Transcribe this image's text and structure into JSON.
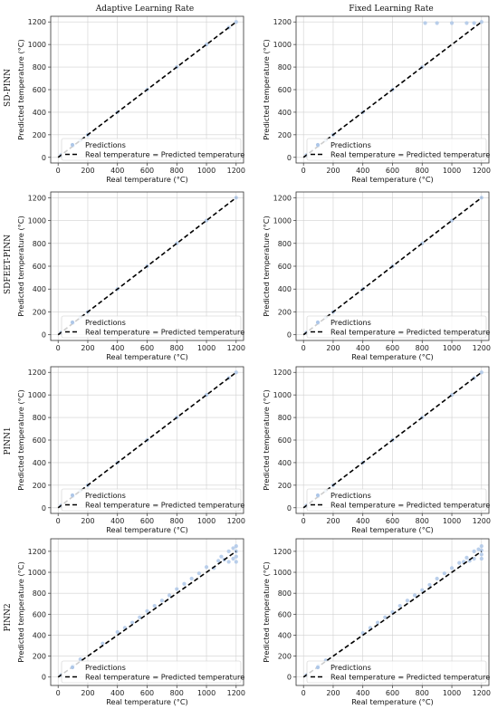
{
  "column_titles": [
    "Adaptive Learning Rate",
    "Fixed Learning Rate"
  ],
  "row_labels": [
    "SD-PINN",
    "SDFEET-PINN",
    "PINN1",
    "PINN2"
  ],
  "colors": {
    "predictions": "#aec7e8",
    "reference_line": "#000000",
    "grid": "#d0d0d0"
  },
  "chart_data": [
    {
      "type": "scatter",
      "title": "",
      "row": 0,
      "col": 0,
      "xlabel": "Real temperature (°C)",
      "ylabel": "Predicted temperature (°C)",
      "xlim": [
        -50,
        1250
      ],
      "ylim": [
        -50,
        1250
      ],
      "xticks": [
        0,
        200,
        400,
        600,
        800,
        1000,
        1200
      ],
      "yticks": [
        0,
        200,
        400,
        600,
        800,
        1000,
        1200
      ],
      "grid": true,
      "legend_position": "lower-right",
      "series": [
        {
          "name": "Predictions",
          "x": [
            20,
            100,
            150,
            200,
            400,
            600,
            800,
            1000,
            1150,
            1200
          ],
          "y": [
            20,
            100,
            150,
            200,
            400,
            600,
            800,
            1000,
            1150,
            1200
          ]
        },
        {
          "name": "Real temperature = Predicted temperature",
          "x": [
            0,
            1200
          ],
          "y": [
            0,
            1200
          ]
        }
      ]
    },
    {
      "type": "scatter",
      "title": "",
      "row": 0,
      "col": 1,
      "xlabel": "Real temperature (°C)",
      "ylabel": "Predicted temperature (°C)",
      "xlim": [
        -50,
        1250
      ],
      "ylim": [
        -50,
        1250
      ],
      "xticks": [
        0,
        200,
        400,
        600,
        800,
        1000,
        1200
      ],
      "yticks": [
        0,
        200,
        400,
        600,
        800,
        1000,
        1200
      ],
      "grid": true,
      "legend_position": "lower-right",
      "series": [
        {
          "name": "Predictions",
          "x": [
            20,
            100,
            150,
            200,
            400,
            600,
            800,
            820,
            900,
            1000,
            1100,
            1150,
            1200
          ],
          "y": [
            20,
            100,
            150,
            200,
            400,
            600,
            800,
            1190,
            1190,
            1190,
            1190,
            1190,
            1200
          ]
        },
        {
          "name": "Real temperature = Predicted temperature",
          "x": [
            0,
            1200
          ],
          "y": [
            0,
            1200
          ]
        }
      ]
    },
    {
      "type": "scatter",
      "title": "",
      "row": 1,
      "col": 0,
      "xlabel": "Real temperature (°C)",
      "ylabel": "Predicted temperature (°C)",
      "xlim": [
        -50,
        1250
      ],
      "ylim": [
        -50,
        1250
      ],
      "xticks": [
        0,
        200,
        400,
        600,
        800,
        1000,
        1200
      ],
      "yticks": [
        0,
        200,
        400,
        600,
        800,
        1000,
        1200
      ],
      "grid": true,
      "legend_position": "lower-right",
      "series": [
        {
          "name": "Predictions",
          "x": [
            20,
            100,
            150,
            200,
            400,
            600,
            800,
            1000,
            1200
          ],
          "y": [
            20,
            100,
            150,
            200,
            400,
            600,
            800,
            1000,
            1200
          ]
        },
        {
          "name": "Real temperature = Predicted temperature",
          "x": [
            0,
            1200
          ],
          "y": [
            0,
            1200
          ]
        }
      ]
    },
    {
      "type": "scatter",
      "title": "",
      "row": 1,
      "col": 1,
      "xlabel": "Real temperature (°C)",
      "ylabel": "Predicted temperature (°C)",
      "xlim": [
        -50,
        1250
      ],
      "ylim": [
        -50,
        1250
      ],
      "xticks": [
        0,
        200,
        400,
        600,
        800,
        1000,
        1200
      ],
      "yticks": [
        0,
        200,
        400,
        600,
        800,
        1000,
        1200
      ],
      "grid": true,
      "legend_position": "lower-right",
      "series": [
        {
          "name": "Predictions",
          "x": [
            20,
            100,
            150,
            200,
            400,
            600,
            800,
            1000,
            1200
          ],
          "y": [
            20,
            100,
            150,
            200,
            400,
            600,
            800,
            1000,
            1200
          ]
        },
        {
          "name": "Real temperature = Predicted temperature",
          "x": [
            0,
            1200
          ],
          "y": [
            0,
            1200
          ]
        }
      ]
    },
    {
      "type": "scatter",
      "title": "",
      "row": 2,
      "col": 0,
      "xlabel": "Real temperature (°C)",
      "ylabel": "Predicted temperature (°C)",
      "xlim": [
        -50,
        1250
      ],
      "ylim": [
        -50,
        1250
      ],
      "xticks": [
        0,
        200,
        400,
        600,
        800,
        1000,
        1200
      ],
      "yticks": [
        0,
        200,
        400,
        600,
        800,
        1000,
        1200
      ],
      "grid": true,
      "legend_position": "lower-right",
      "series": [
        {
          "name": "Predictions",
          "x": [
            20,
            100,
            150,
            200,
            400,
            600,
            800,
            1000,
            1150,
            1200
          ],
          "y": [
            20,
            100,
            150,
            200,
            400,
            600,
            800,
            1000,
            1150,
            1200
          ]
        },
        {
          "name": "Real temperature = Predicted temperature",
          "x": [
            0,
            1200
          ],
          "y": [
            0,
            1200
          ]
        }
      ]
    },
    {
      "type": "scatter",
      "title": "",
      "row": 2,
      "col": 1,
      "xlabel": "Real temperature (°C)",
      "ylabel": "Predicted temperature (°C)",
      "xlim": [
        -50,
        1250
      ],
      "ylim": [
        -50,
        1250
      ],
      "xticks": [
        0,
        200,
        400,
        600,
        800,
        1000,
        1200
      ],
      "yticks": [
        0,
        200,
        400,
        600,
        800,
        1000,
        1200
      ],
      "grid": true,
      "legend_position": "lower-right",
      "series": [
        {
          "name": "Predictions",
          "x": [
            20,
            100,
            150,
            200,
            400,
            600,
            800,
            1000,
            1150,
            1200
          ],
          "y": [
            20,
            100,
            150,
            200,
            400,
            600,
            800,
            1000,
            1150,
            1200
          ]
        },
        {
          "name": "Real temperature = Predicted temperature",
          "x": [
            0,
            1200
          ],
          "y": [
            0,
            1200
          ]
        }
      ]
    },
    {
      "type": "scatter",
      "title": "",
      "row": 3,
      "col": 0,
      "xlabel": "Real temperature (°C)",
      "ylabel": "Predicted temperature (°C)",
      "xlim": [
        -50,
        1250
      ],
      "ylim": [
        -80,
        1320
      ],
      "xticks": [
        0,
        200,
        400,
        600,
        800,
        1000,
        1200
      ],
      "yticks": [
        0,
        200,
        400,
        600,
        800,
        1000,
        1200
      ],
      "grid": true,
      "legend_position": "lower-right",
      "series": [
        {
          "name": "Predictions",
          "x": [
            20,
            100,
            150,
            300,
            400,
            450,
            500,
            550,
            600,
            650,
            700,
            750,
            800,
            850,
            900,
            950,
            1000,
            1050,
            1080,
            1100,
            1120,
            1150,
            1150,
            1180,
            1180,
            1200,
            1200,
            1200,
            1200
          ],
          "y": [
            20,
            110,
            170,
            320,
            430,
            470,
            520,
            570,
            630,
            680,
            730,
            780,
            840,
            890,
            940,
            990,
            1050,
            1040,
            1110,
            1150,
            1120,
            1100,
            1200,
            1130,
            1230,
            1100,
            1150,
            1200,
            1250
          ]
        },
        {
          "name": "Real temperature = Predicted temperature",
          "x": [
            0,
            1200
          ],
          "y": [
            0,
            1200
          ]
        }
      ]
    },
    {
      "type": "scatter",
      "title": "",
      "row": 3,
      "col": 1,
      "xlabel": "Real temperature (°C)",
      "ylabel": "Predicted temperature (°C)",
      "xlim": [
        -50,
        1250
      ],
      "ylim": [
        -80,
        1320
      ],
      "xticks": [
        0,
        200,
        400,
        600,
        800,
        1000,
        1200
      ],
      "yticks": [
        0,
        200,
        400,
        600,
        800,
        1000,
        1200
      ],
      "grid": true,
      "legend_position": "lower-right",
      "series": [
        {
          "name": "Predictions",
          "x": [
            20,
            100,
            150,
            400,
            450,
            500,
            550,
            600,
            650,
            700,
            750,
            800,
            850,
            900,
            950,
            1000,
            1050,
            1080,
            1100,
            1120,
            1150,
            1150,
            1180,
            1200,
            1200,
            1200,
            1200
          ],
          "y": [
            20,
            110,
            160,
            420,
            470,
            520,
            570,
            620,
            680,
            730,
            780,
            830,
            880,
            940,
            990,
            1040,
            1090,
            1100,
            1140,
            1110,
            1130,
            1200,
            1220,
            1130,
            1170,
            1210,
            1250
          ]
        },
        {
          "name": "Real temperature = Predicted temperature",
          "x": [
            0,
            1200
          ],
          "y": [
            0,
            1200
          ]
        }
      ]
    }
  ]
}
